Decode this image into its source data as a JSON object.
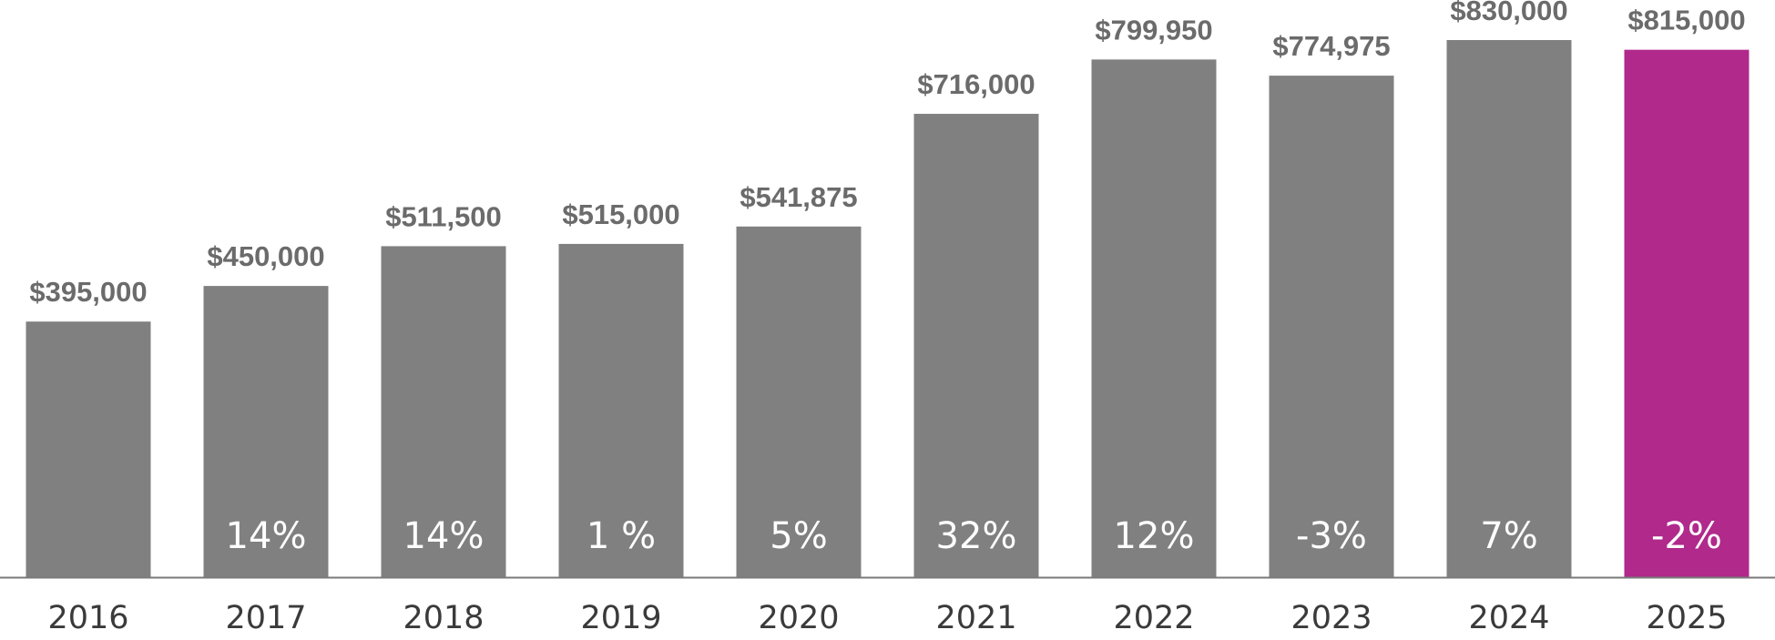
{
  "chart_data": {
    "type": "bar",
    "title": "",
    "xlabel": "",
    "ylabel": "",
    "categories": [
      "2016",
      "2017",
      "2018",
      "2019",
      "2020",
      "2021",
      "2022",
      "2023",
      "2024",
      "2025"
    ],
    "values": [
      395000,
      450000,
      511500,
      515000,
      541875,
      716000,
      799950,
      774975,
      830000,
      815000
    ],
    "value_labels": [
      "$395,000",
      "$450,000",
      "$511,500",
      "$515,000",
      "$541,875",
      "$716,000",
      "$799,950",
      "$774,975",
      "$830,000",
      "$815,000"
    ],
    "change_labels": [
      "",
      "14%",
      "14%",
      "1 %",
      "5%",
      "32%",
      "12%",
      "-3%",
      "7%",
      "-2%"
    ],
    "ylim": [
      0,
      830000
    ],
    "grid": false,
    "legend": "none",
    "colors": {
      "bar": "#808080",
      "highlight_bar": "#b0298b",
      "value_label": "#6b6b6b",
      "change_label": "#ffffff",
      "axis": "#7a7a7a",
      "year_label": "#3a3a3a"
    },
    "highlight_index": 9
  }
}
